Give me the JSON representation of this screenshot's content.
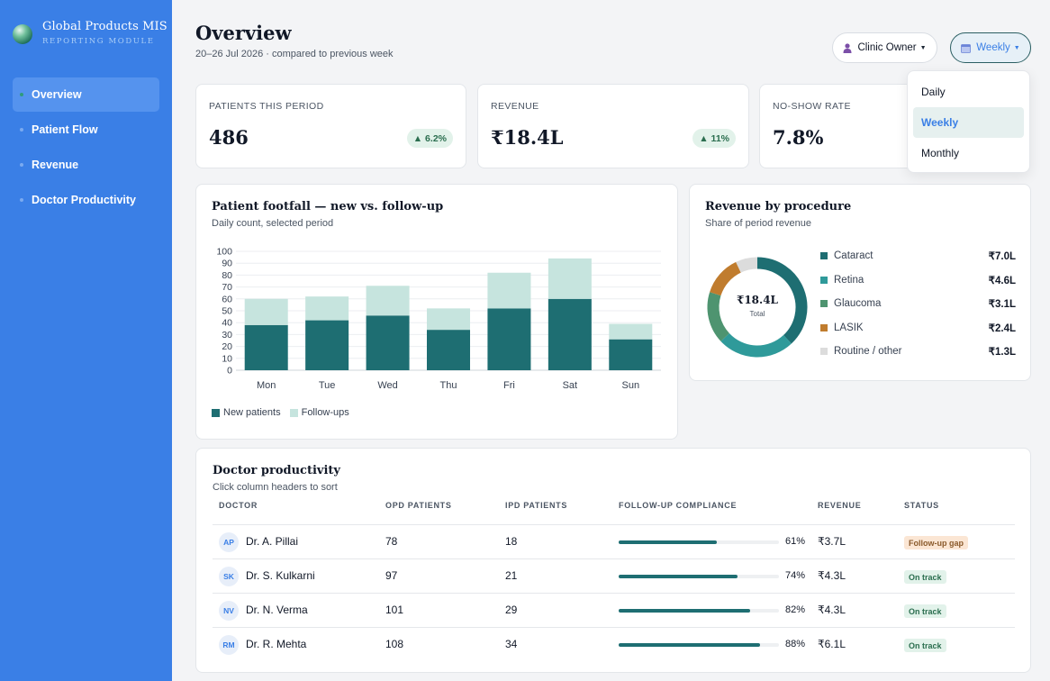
{
  "app": {
    "title": "Global Products MIS",
    "subtitle": "REPORTING MODULE"
  },
  "sidebar": {
    "items": [
      {
        "label": "Overview",
        "active": true
      },
      {
        "label": "Patient Flow",
        "active": false
      },
      {
        "label": "Revenue",
        "active": false
      },
      {
        "label": "Doctor Productivity",
        "active": false
      }
    ]
  },
  "header": {
    "title": "Overview",
    "subtitle": "20–26 Jul 2026 · compared to previous week",
    "role_button": "Clinic Owner",
    "period_button": "Weekly"
  },
  "period_menu": {
    "options": [
      "Daily",
      "Weekly",
      "Monthly"
    ],
    "selected": "Weekly"
  },
  "kpis": [
    {
      "label": "PATIENTS THIS PERIOD",
      "value": "486",
      "delta": "▲ 6.2%"
    },
    {
      "label": "REVENUE",
      "value": "₹18.4L",
      "delta": "▲ 11%"
    },
    {
      "label": "NO-SHOW RATE",
      "value": "7.8%"
    }
  ],
  "footfall": {
    "title": "Patient footfall — new vs. follow-up",
    "subtitle": "Daily count, selected period",
    "legend": [
      "New patients",
      "Follow-ups"
    ]
  },
  "revenue_card": {
    "title": "Revenue by procedure",
    "subtitle": "Share of period revenue",
    "center_value": "₹18.4L",
    "center_label": "Total",
    "items": [
      {
        "name": "Cataract",
        "value": "₹7.0L",
        "color": "#1e6e72"
      },
      {
        "name": "Retina",
        "value": "₹4.6L",
        "color": "#2f9a9a"
      },
      {
        "name": "Glaucoma",
        "value": "₹3.1L",
        "color": "#4e9470"
      },
      {
        "name": "LASIK",
        "value": "₹2.4L",
        "color": "#c07c2e"
      },
      {
        "name": "Routine / other",
        "value": "₹1.3L",
        "color": "#dcdcdc"
      }
    ]
  },
  "chart_data": [
    {
      "type": "bar",
      "stacked": true,
      "categories": [
        "Mon",
        "Tue",
        "Wed",
        "Thu",
        "Fri",
        "Sat",
        "Sun"
      ],
      "series": [
        {
          "name": "New patients",
          "values": [
            38,
            42,
            46,
            34,
            52,
            60,
            26
          ],
          "color": "#1e6e72"
        },
        {
          "name": "Follow-ups",
          "values": [
            22,
            20,
            25,
            18,
            30,
            34,
            13
          ],
          "color": "#c6e4de"
        }
      ],
      "y_ticks": [
        0,
        10,
        20,
        30,
        40,
        50,
        60,
        70,
        80,
        90,
        100
      ],
      "ylim": [
        0,
        100
      ],
      "grid": true
    },
    {
      "type": "pie",
      "donut": true,
      "labels": [
        "Cataract",
        "Retina",
        "Glaucoma",
        "LASIK",
        "Routine / other"
      ],
      "values": [
        7.0,
        4.6,
        3.1,
        2.4,
        1.3
      ],
      "colors": [
        "#1e6e72",
        "#2f9a9a",
        "#4e9470",
        "#c07c2e",
        "#dcdcdc"
      ]
    }
  ],
  "doctor_table": {
    "title": "Doctor productivity",
    "subtitle": "Click column headers to sort",
    "columns": [
      "DOCTOR",
      "OPD PATIENTS",
      "IPD PATIENTS",
      "FOLLOW-UP COMPLIANCE",
      "REVENUE",
      "STATUS"
    ],
    "rows": [
      {
        "initials": "AP",
        "name": "Dr. A. Pillai",
        "opd": "78",
        "ipd": "18",
        "compliance": 61,
        "compliance_label": "61%",
        "revenue": "₹3.7L",
        "status": "Follow-up gap",
        "status_type": "gap"
      },
      {
        "initials": "SK",
        "name": "Dr. S. Kulkarni",
        "opd": "97",
        "ipd": "21",
        "compliance": 74,
        "compliance_label": "74%",
        "revenue": "₹4.3L",
        "status": "On track",
        "status_type": "ok"
      },
      {
        "initials": "NV",
        "name": "Dr. N. Verma",
        "opd": "101",
        "ipd": "29",
        "compliance": 82,
        "compliance_label": "82%",
        "revenue": "₹4.3L",
        "status": "On track",
        "status_type": "ok"
      },
      {
        "initials": "RM",
        "name": "Dr. R. Mehta",
        "opd": "108",
        "ipd": "34",
        "compliance": 88,
        "compliance_label": "88%",
        "revenue": "₹6.1L",
        "status": "On track",
        "status_type": "ok"
      }
    ]
  }
}
